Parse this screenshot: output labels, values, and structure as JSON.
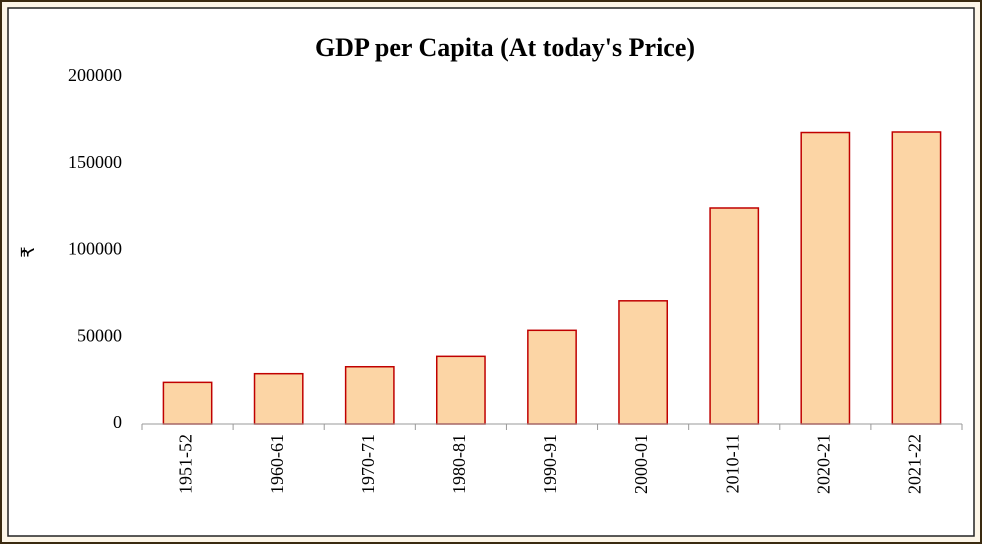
{
  "chart_data": {
    "type": "bar",
    "title": "GDP per Capita (At today's Price)",
    "y_label": "₹",
    "categories": [
      "1951-52",
      "1960-61",
      "1970-71",
      "1980-81",
      "1990-91",
      "2000-01",
      "2010-11",
      "2020-21",
      "2021-22"
    ],
    "values": [
      24000,
      29000,
      33000,
      39000,
      54000,
      71000,
      124500,
      168000,
      168300
    ],
    "color": "#fcd5a5",
    "edge_color": "#c00000",
    "ylim": [
      0,
      200000
    ],
    "yticks": [
      0,
      50000,
      100000,
      150000,
      200000
    ],
    "grid": false
  }
}
